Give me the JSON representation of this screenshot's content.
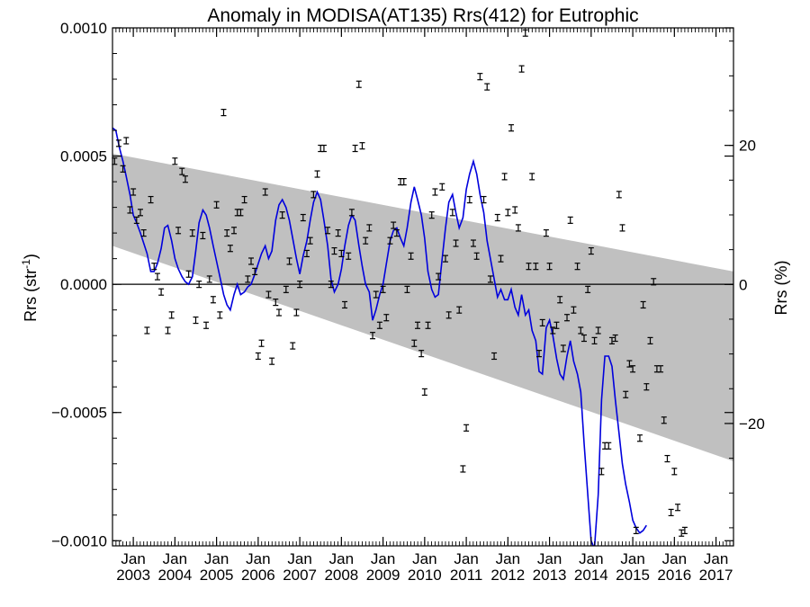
{
  "chart_data": {
    "type": "line",
    "title": "Anomaly in MODISA(AT135) Rrs(412) for Eutrophic",
    "ylabel": "Rrs (str",
    "ylabel_sup": "-1",
    "ylabel_close": ")",
    "y2label": "Rrs (%)",
    "xlim": [
      2002.5,
      2017.42
    ],
    "ylim": [
      -0.00102,
      0.001
    ],
    "y2lim": [
      -37.6,
      36.9
    ],
    "y_ticks": [
      -0.001,
      -0.0005,
      0.0,
      0.0005,
      0.001
    ],
    "y_tick_labels": [
      "−0.0010",
      "−0.0005",
      "0.0000",
      "0.0005",
      "0.0010"
    ],
    "y2_ticks": [
      -20,
      0,
      20
    ],
    "y2_tick_labels": [
      "−20",
      "0",
      "20"
    ],
    "x_ticks": [
      2003,
      2004,
      2005,
      2006,
      2007,
      2008,
      2009,
      2010,
      2011,
      2012,
      2013,
      2014,
      2015,
      2016,
      2017
    ],
    "x_tick_month": "Jan",
    "x_tick_labels": [
      "2003",
      "2004",
      "2005",
      "2006",
      "2007",
      "2008",
      "2009",
      "2010",
      "2011",
      "2012",
      "2013",
      "2014",
      "2015",
      "2016",
      "2017"
    ],
    "grid": false,
    "legend": "none",
    "colors": {
      "line": "#0000dd",
      "band": "#c0c0c0",
      "points": "#000000",
      "zero": "#000000"
    },
    "band": {
      "upper": [
        [
          2002.5,
          0.00051
        ],
        [
          2017.42,
          5e-05
        ]
      ],
      "lower": [
        [
          2002.5,
          0.00015
        ],
        [
          2017.42,
          -0.00069
        ]
      ]
    },
    "points": [
      [
        2002.55,
        0.00048
      ],
      [
        2002.65,
        0.00055
      ],
      [
        2002.75,
        0.00045
      ],
      [
        2002.83,
        0.00056
      ],
      [
        2002.92,
        0.00029
      ],
      [
        2003.0,
        0.00036
      ],
      [
        2003.08,
        0.00025
      ],
      [
        2003.17,
        0.00028
      ],
      [
        2003.25,
        0.0002
      ],
      [
        2003.33,
        -0.00018
      ],
      [
        2003.42,
        0.00033
      ],
      [
        2003.5,
        7e-05
      ],
      [
        2003.58,
        3e-05
      ],
      [
        2003.67,
        -3e-05
      ],
      [
        2003.83,
        -0.00018
      ],
      [
        2003.92,
        -0.00012
      ],
      [
        2004.0,
        0.00048
      ],
      [
        2004.08,
        0.00021
      ],
      [
        2004.17,
        0.00044
      ],
      [
        2004.25,
        0.00041
      ],
      [
        2004.33,
        4e-05
      ],
      [
        2004.42,
        0.0002
      ],
      [
        2004.5,
        -0.00014
      ],
      [
        2004.58,
        0.0
      ],
      [
        2004.67,
        0.00019
      ],
      [
        2004.75,
        -0.00016
      ],
      [
        2004.83,
        2e-05
      ],
      [
        2004.92,
        -6e-05
      ],
      [
        2005.0,
        0.00031
      ],
      [
        2005.08,
        -0.00012
      ],
      [
        2005.17,
        0.00067
      ],
      [
        2005.25,
        0.0002
      ],
      [
        2005.33,
        0.00014
      ],
      [
        2005.42,
        0.00021
      ],
      [
        2005.5,
        0.00028
      ],
      [
        2005.58,
        0.00028
      ],
      [
        2005.67,
        0.00033
      ],
      [
        2005.75,
        2e-05
      ],
      [
        2005.83,
        9e-05
      ],
      [
        2005.92,
        5e-05
      ],
      [
        2006.0,
        -0.00028
      ],
      [
        2006.08,
        -0.00023
      ],
      [
        2006.17,
        0.00036
      ],
      [
        2006.25,
        -4e-05
      ],
      [
        2006.33,
        -0.0003
      ],
      [
        2006.42,
        -7e-05
      ],
      [
        2006.5,
        -0.00011
      ],
      [
        2006.58,
        0.00027
      ],
      [
        2006.67,
        -2e-05
      ],
      [
        2006.75,
        9e-05
      ],
      [
        2006.83,
        -0.00024
      ],
      [
        2006.92,
        -0.00011
      ],
      [
        2007.0,
        0.0
      ],
      [
        2007.08,
        0.00026
      ],
      [
        2007.17,
        0.00012
      ],
      [
        2007.25,
        0.00017
      ],
      [
        2007.33,
        0.00035
      ],
      [
        2007.42,
        0.00043
      ],
      [
        2007.5,
        0.00053
      ],
      [
        2007.58,
        0.00053
      ],
      [
        2007.67,
        0.00021
      ],
      [
        2007.75,
        0.0
      ],
      [
        2007.83,
        0.00013
      ],
      [
        2007.92,
        0.0002
      ],
      [
        2008.0,
        0.00012
      ],
      [
        2008.08,
        -8e-05
      ],
      [
        2008.17,
        0.00011
      ],
      [
        2008.25,
        0.00028
      ],
      [
        2008.33,
        0.00053
      ],
      [
        2008.42,
        0.00078
      ],
      [
        2008.5,
        0.00054
      ],
      [
        2008.58,
        0.00017
      ],
      [
        2008.67,
        0.00022
      ],
      [
        2008.75,
        -0.0002
      ],
      [
        2008.83,
        -4e-05
      ],
      [
        2008.92,
        -0.00016
      ],
      [
        2009.0,
        -2e-05
      ],
      [
        2009.08,
        -0.00013
      ],
      [
        2009.17,
        0.00017
      ],
      [
        2009.25,
        0.00023
      ],
      [
        2009.33,
        0.0002
      ],
      [
        2009.42,
        0.0004
      ],
      [
        2009.5,
        0.0004
      ],
      [
        2009.58,
        -2e-05
      ],
      [
        2009.67,
        0.00011
      ],
      [
        2009.75,
        -0.00023
      ],
      [
        2009.83,
        -0.00016
      ],
      [
        2009.92,
        -0.00027
      ],
      [
        2010.0,
        -0.00042
      ],
      [
        2010.08,
        -0.00016
      ],
      [
        2010.17,
        0.00027
      ],
      [
        2010.25,
        0.00036
      ],
      [
        2010.33,
        3e-05
      ],
      [
        2010.42,
        0.00038
      ],
      [
        2010.5,
        0.0001
      ],
      [
        2010.58,
        -0.00012
      ],
      [
        2010.67,
        0.00028
      ],
      [
        2010.75,
        0.00016
      ],
      [
        2010.83,
        -0.0001
      ],
      [
        2010.92,
        -0.00072
      ],
      [
        2011.0,
        -0.00056
      ],
      [
        2011.08,
        0.00033
      ],
      [
        2011.17,
        0.00016
      ],
      [
        2011.25,
        0.00011
      ],
      [
        2011.33,
        0.00081
      ],
      [
        2011.42,
        0.00033
      ],
      [
        2011.5,
        0.00077
      ],
      [
        2011.58,
        2e-05
      ],
      [
        2011.67,
        -0.00028
      ],
      [
        2011.75,
        0.00026
      ],
      [
        2011.83,
        0.0001
      ],
      [
        2011.92,
        0.00042
      ],
      [
        2012.0,
        0.00028
      ],
      [
        2012.08,
        0.00061
      ],
      [
        2012.17,
        0.00029
      ],
      [
        2012.25,
        0.00022
      ],
      [
        2012.33,
        0.00084
      ],
      [
        2012.42,
        0.00098
      ],
      [
        2012.5,
        7e-05
      ],
      [
        2012.58,
        0.00042
      ],
      [
        2012.67,
        7e-05
      ],
      [
        2012.75,
        -0.00027
      ],
      [
        2012.83,
        -0.00015
      ],
      [
        2012.92,
        0.0002
      ],
      [
        2013.0,
        7e-05
      ],
      [
        2013.08,
        -0.00018
      ],
      [
        2013.17,
        -0.00016
      ],
      [
        2013.25,
        -6e-05
      ],
      [
        2013.33,
        -0.00025
      ],
      [
        2013.42,
        -0.00013
      ],
      [
        2013.5,
        0.00025
      ],
      [
        2013.58,
        -0.0001
      ],
      [
        2013.67,
        7e-05
      ],
      [
        2013.75,
        -0.00018
      ],
      [
        2013.83,
        -0.00021
      ],
      [
        2013.92,
        -2e-05
      ],
      [
        2014.0,
        0.00013
      ],
      [
        2014.08,
        -0.00022
      ],
      [
        2014.17,
        -0.00018
      ],
      [
        2014.25,
        -0.00073
      ],
      [
        2014.33,
        -0.00063
      ],
      [
        2014.42,
        -0.00063
      ],
      [
        2014.5,
        -0.00022
      ],
      [
        2014.58,
        -0.00021
      ],
      [
        2014.67,
        0.00035
      ],
      [
        2014.75,
        0.00022
      ],
      [
        2014.83,
        -0.00043
      ],
      [
        2014.92,
        -0.00031
      ],
      [
        2015.0,
        -0.00033
      ],
      [
        2015.08,
        -0.00096
      ],
      [
        2015.17,
        -0.0006
      ],
      [
        2015.25,
        -8e-05
      ],
      [
        2015.33,
        -0.0004
      ],
      [
        2015.42,
        -0.00022
      ],
      [
        2015.5,
        1e-05
      ],
      [
        2015.58,
        -0.00033
      ],
      [
        2015.67,
        -0.00033
      ],
      [
        2015.75,
        -0.00053
      ],
      [
        2015.83,
        -0.00068
      ],
      [
        2015.92,
        -0.00089
      ],
      [
        2016.0,
        -0.00073
      ],
      [
        2016.08,
        -0.00087
      ],
      [
        2016.17,
        -0.00097
      ],
      [
        2016.25,
        -0.00096
      ]
    ],
    "line": [
      [
        2002.5,
        0.00061
      ],
      [
        2002.58,
        0.0006
      ],
      [
        2002.67,
        0.00053
      ],
      [
        2002.75,
        0.00048
      ],
      [
        2002.83,
        0.00042
      ],
      [
        2002.92,
        0.00035
      ],
      [
        2003.0,
        0.00027
      ],
      [
        2003.08,
        0.00024
      ],
      [
        2003.17,
        0.0002
      ],
      [
        2003.25,
        0.00016
      ],
      [
        2003.33,
        0.00012
      ],
      [
        2003.42,
        5e-05
      ],
      [
        2003.5,
        5e-05
      ],
      [
        2003.58,
        8e-05
      ],
      [
        2003.67,
        0.00014
      ],
      [
        2003.75,
        0.00022
      ],
      [
        2003.83,
        0.00023
      ],
      [
        2003.92,
        0.00017
      ],
      [
        2004.0,
        0.0001
      ],
      [
        2004.08,
        6e-05
      ],
      [
        2004.17,
        3e-05
      ],
      [
        2004.25,
        1e-05
      ],
      [
        2004.33,
        0.0
      ],
      [
        2004.42,
        3e-05
      ],
      [
        2004.5,
        0.00013
      ],
      [
        2004.58,
        0.00024
      ],
      [
        2004.67,
        0.00029
      ],
      [
        2004.75,
        0.00027
      ],
      [
        2004.83,
        0.00022
      ],
      [
        2004.92,
        0.00015
      ],
      [
        2005.0,
        9e-05
      ],
      [
        2005.08,
        3e-05
      ],
      [
        2005.17,
        -4e-05
      ],
      [
        2005.25,
        -8e-05
      ],
      [
        2005.33,
        -0.0001
      ],
      [
        2005.42,
        -4e-05
      ],
      [
        2005.5,
        0.0
      ],
      [
        2005.58,
        -4e-05
      ],
      [
        2005.67,
        -3e-05
      ],
      [
        2005.75,
        -1e-05
      ],
      [
        2005.83,
        0.0
      ],
      [
        2005.92,
        4e-05
      ],
      [
        2006.0,
        8e-05
      ],
      [
        2006.08,
        0.00012
      ],
      [
        2006.17,
        0.00015
      ],
      [
        2006.25,
        0.0001
      ],
      [
        2006.33,
        0.00013
      ],
      [
        2006.42,
        0.00025
      ],
      [
        2006.5,
        0.00031
      ],
      [
        2006.58,
        0.00033
      ],
      [
        2006.67,
        0.0003
      ],
      [
        2006.75,
        0.00025
      ],
      [
        2006.83,
        0.00018
      ],
      [
        2006.92,
        0.0001
      ],
      [
        2007.0,
        4e-05
      ],
      [
        2007.08,
        0.00011
      ],
      [
        2007.17,
        0.00017
      ],
      [
        2007.25,
        0.00025
      ],
      [
        2007.33,
        0.00032
      ],
      [
        2007.42,
        0.00036
      ],
      [
        2007.5,
        0.00033
      ],
      [
        2007.58,
        0.00025
      ],
      [
        2007.67,
        0.00015
      ],
      [
        2007.75,
        2e-05
      ],
      [
        2007.83,
        -3e-05
      ],
      [
        2007.92,
        0.0
      ],
      [
        2008.0,
        6e-05
      ],
      [
        2008.08,
        0.00015
      ],
      [
        2008.17,
        0.00023
      ],
      [
        2008.25,
        0.00027
      ],
      [
        2008.33,
        0.00025
      ],
      [
        2008.42,
        0.00015
      ],
      [
        2008.5,
        7e-05
      ],
      [
        2008.58,
        0.0
      ],
      [
        2008.67,
        -3e-05
      ],
      [
        2008.75,
        -0.00014
      ],
      [
        2008.83,
        -0.0001
      ],
      [
        2008.92,
        -4e-05
      ],
      [
        2009.0,
        0.0
      ],
      [
        2009.08,
        8e-05
      ],
      [
        2009.17,
        0.00017
      ],
      [
        2009.25,
        0.00021
      ],
      [
        2009.33,
        0.00022
      ],
      [
        2009.42,
        0.00018
      ],
      [
        2009.5,
        0.00015
      ],
      [
        2009.58,
        0.00022
      ],
      [
        2009.67,
        0.00032
      ],
      [
        2009.75,
        0.00038
      ],
      [
        2009.83,
        0.00033
      ],
      [
        2009.92,
        0.00027
      ],
      [
        2010.0,
        0.00018
      ],
      [
        2010.08,
        5e-05
      ],
      [
        2010.17,
        -2e-05
      ],
      [
        2010.25,
        -5e-05
      ],
      [
        2010.33,
        -4e-05
      ],
      [
        2010.42,
        0.0001
      ],
      [
        2010.5,
        0.00022
      ],
      [
        2010.58,
        0.00032
      ],
      [
        2010.67,
        0.00035
      ],
      [
        2010.75,
        0.00028
      ],
      [
        2010.83,
        0.00022
      ],
      [
        2010.92,
        0.00026
      ],
      [
        2011.0,
        0.00037
      ],
      [
        2011.08,
        0.00043
      ],
      [
        2011.17,
        0.00048
      ],
      [
        2011.25,
        0.00043
      ],
      [
        2011.33,
        0.00035
      ],
      [
        2011.42,
        0.00028
      ],
      [
        2011.5,
        0.00017
      ],
      [
        2011.58,
        0.0001
      ],
      [
        2011.67,
        2e-05
      ],
      [
        2011.75,
        -5e-05
      ],
      [
        2011.83,
        -2e-05
      ],
      [
        2011.92,
        -6e-05
      ],
      [
        2012.0,
        -6e-05
      ],
      [
        2012.08,
        -2e-05
      ],
      [
        2012.17,
        -9e-05
      ],
      [
        2012.25,
        -0.00012
      ],
      [
        2012.33,
        -4e-05
      ],
      [
        2012.42,
        -0.00012
      ],
      [
        2012.5,
        -0.0001
      ],
      [
        2012.58,
        -0.00018
      ],
      [
        2012.67,
        -0.00022
      ],
      [
        2012.75,
        -0.00034
      ],
      [
        2012.83,
        -0.00035
      ],
      [
        2012.92,
        -0.00017
      ],
      [
        2013.0,
        -0.00014
      ],
      [
        2013.08,
        -0.0002
      ],
      [
        2013.17,
        -0.00029
      ],
      [
        2013.25,
        -0.00035
      ],
      [
        2013.33,
        -0.00037
      ],
      [
        2013.42,
        -0.00028
      ],
      [
        2013.5,
        -0.00022
      ],
      [
        2013.58,
        -0.0003
      ],
      [
        2013.67,
        -0.00035
      ],
      [
        2013.75,
        -0.00042
      ],
      [
        2013.83,
        -0.00062
      ],
      [
        2013.92,
        -0.00082
      ],
      [
        2014.0,
        -0.001
      ],
      [
        2014.08,
        -0.00103
      ],
      [
        2014.17,
        -0.00082
      ],
      [
        2014.25,
        -0.00045
      ],
      [
        2014.33,
        -0.00028
      ],
      [
        2014.42,
        -0.00028
      ],
      [
        2014.5,
        -0.00032
      ],
      [
        2014.58,
        -0.00045
      ],
      [
        2014.67,
        -0.00058
      ],
      [
        2014.75,
        -0.0007
      ],
      [
        2014.83,
        -0.00078
      ],
      [
        2014.92,
        -0.00085
      ],
      [
        2015.0,
        -0.00092
      ],
      [
        2015.08,
        -0.00095
      ],
      [
        2015.17,
        -0.00097
      ],
      [
        2015.25,
        -0.00096
      ],
      [
        2015.33,
        -0.00094
      ]
    ]
  }
}
